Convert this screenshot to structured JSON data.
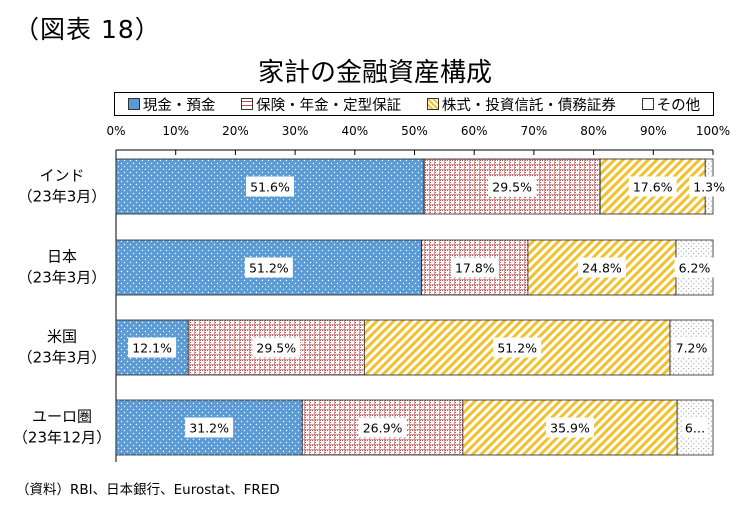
{
  "figure_number": "（図表 18）",
  "source": "（資料）RBI、日本銀行、Eurostat、FRED",
  "chart_data": {
    "type": "bar",
    "orientation": "horizontal",
    "stacked": true,
    "title": "家計の金融資産構成",
    "xlim": [
      0,
      100
    ],
    "x_tick_labels": [
      "0%",
      "10%",
      "20%",
      "30%",
      "40%",
      "50%",
      "60%",
      "70%",
      "80%",
      "90%",
      "100%"
    ],
    "legend_position": "top",
    "categories": [
      {
        "name": "インド",
        "period": "（23年3月）"
      },
      {
        "name": "日本",
        "period": "（23年3月）"
      },
      {
        "name": "米国",
        "period": "（23年3月）"
      },
      {
        "name": "ユーロ圏",
        "period": "（23年12月）"
      }
    ],
    "series": [
      {
        "name": "現金・預金",
        "color": "#5b9bd5",
        "pattern": "dots-white",
        "values": [
          51.6,
          51.2,
          12.1,
          31.2
        ],
        "labels": [
          "51.6%",
          "51.2%",
          "12.1%",
          "31.2%"
        ]
      },
      {
        "name": "保険・年金・定型保証",
        "color": "#c0504d",
        "pattern": "grid-red",
        "values": [
          29.5,
          17.8,
          29.5,
          26.9
        ],
        "labels": [
          "29.5%",
          "17.8%",
          "29.5%",
          "26.9%"
        ]
      },
      {
        "name": "株式・投資信託・債務証券",
        "color": "#f2c12e",
        "pattern": "diagonal-yellow",
        "values": [
          17.6,
          24.8,
          51.2,
          35.9
        ],
        "labels": [
          "17.6%",
          "24.8%",
          "51.2%",
          "35.9%"
        ]
      },
      {
        "name": "その他",
        "color": "#7f7f7f",
        "pattern": "dots-grey",
        "values": [
          1.3,
          6.2,
          7.2,
          6.0
        ],
        "labels": [
          "1.3%",
          "6.2%",
          "7.2%",
          "6…"
        ]
      }
    ]
  }
}
